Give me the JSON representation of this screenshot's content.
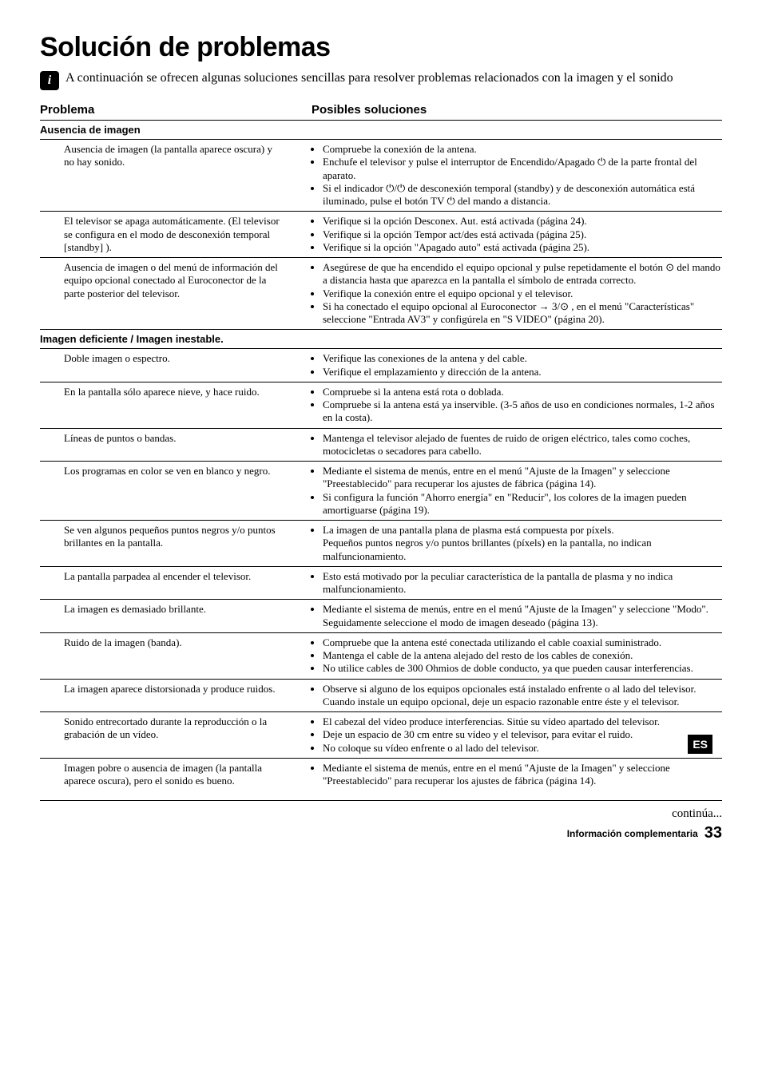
{
  "title": "Solución de problemas",
  "intro": "A continuación se ofrecen algunas soluciones sencillas para resolver problemas relacionados con la imagen y el sonido",
  "header": {
    "problema": "Problema",
    "soluciones": "Posibles soluciones"
  },
  "sections": [
    {
      "head": "Ausencia de imagen",
      "rows": [
        {
          "problem": "Ausencia de imagen (la pantalla aparece oscura) y no hay sonido.",
          "sol": [
            "Compruebe la conexión de la antena.",
            "Enchufe el televisor y pulse el interruptor de Encendido/Apagado ⏻ de la parte frontal del aparato.",
            "Si el indicador ⏻/⏻ de desconexión temporal (standby) y de desconexión automática está iluminado, pulse el botón TV ⏻ del mando a distancia."
          ]
        },
        {
          "problem": "El televisor se apaga automáticamente. (El televisor se configura en el modo de desconexión temporal [standby] ).",
          "sol": [
            "Verifique si la opción Desconex. Aut. está activada (página 24).",
            "Verifique si la opción Tempor act/des está activada (página 25).",
            "Verifique si la opción \"Apagado auto\" está activada (página 25)."
          ]
        },
        {
          "problem": "Ausencia de imagen o del menú de información del equipo opcional conectado al Euroconector de la parte posterior del televisor.",
          "sol": [
            "Asegúrese de que ha encendido el equipo opcional y pulse repetidamente el botón ⊙ del mando a distancia hasta que aparezca en la pantalla el símbolo de entrada correcto.",
            "Verifique la conexión entre el equipo opcional y el televisor.",
            "Si ha conectado el equipo opcional al Euroconector → 3/⊙ , en el menú \"Características\" seleccione \"Entrada AV3\" y configúrela en \"S VIDEO\"  (página 20)."
          ]
        }
      ]
    },
    {
      "head": "Imagen deficiente / Imagen inestable.",
      "rows": [
        {
          "problem": "Doble imagen o espectro.",
          "sol": [
            "Verifique las conexiones de la antena y del cable.",
            "Verifique el emplazamiento y dirección de la antena."
          ]
        },
        {
          "problem": "En la pantalla sólo aparece nieve, y hace ruido.",
          "sol": [
            "Compruebe si la antena está rota o doblada.",
            "Compruebe si la antena está ya inservible. (3-5 años de uso en condiciones normales, 1-2 años en la costa)."
          ]
        },
        {
          "problem": "Líneas de puntos o bandas.",
          "sol": [
            "Mantenga el televisor alejado de fuentes de ruido de origen eléctrico, tales como coches, motocicletas o secadores para cabello."
          ]
        },
        {
          "problem": "Los programas en color se ven en blanco y negro.",
          "sol": [
            "Mediante el sistema de menús, entre en el menú \"Ajuste de la Imagen\" y seleccione \"Preestablecido\" para recuperar los ajustes de fábrica (página 14).",
            "Si configura la función \"Ahorro energía\" en \"Reducir\", los colores de la imagen pueden amortiguarse (página 19)."
          ]
        },
        {
          "problem": "Se ven algunos pequeños puntos negros y/o puntos brillantes en la pantalla.",
          "sol_plain": "La imagen de una pantalla plana de plasma está compuesta por píxels.\nPequeños puntos negros y/o puntos brillantes (píxels) en la pantalla, no indican malfuncionamiento."
        },
        {
          "problem": "La pantalla parpadea al encender el televisor.",
          "sol": [
            "Esto está motivado por la peculiar característica de la pantalla de plasma y no indica malfuncionamiento."
          ]
        },
        {
          "problem": "La imagen es demasiado brillante.",
          "sol": [
            "Mediante el sistema de menús, entre en el menú \"Ajuste de la Imagen\" y seleccione \"Modo\". Seguidamente seleccione el modo de imagen deseado (página 13)."
          ]
        },
        {
          "problem": "Ruido de la imagen (banda).",
          "sol": [
            "Compruebe que la antena esté conectada utilizando el cable coaxial suministrado.",
            "Mantenga el cable de la antena alejado del resto de los cables de conexión.",
            "No utilice cables de 300 Ohmios de doble conducto, ya que pueden causar interferencias."
          ]
        },
        {
          "problem": "La imagen aparece distorsionada y produce ruidos.",
          "sol_plain_bulleted": "Observe si alguno de los equipos opcionales está instalado enfrente o al lado del televisor.\nCuando instale un equipo opcional, deje un espacio razonable entre éste y el televisor."
        },
        {
          "problem": "Sonido entrecortado durante la reproducción o la grabación de un vídeo.",
          "sol": [
            "El cabezal del vídeo produce interferencias. Sitúe su vídeo apartado del televisor.",
            "Deje un espacio de 30 cm entre su vídeo y el televisor, para evitar el ruido.",
            "No coloque su vídeo enfrente o al lado del televisor."
          ],
          "es_badge": true
        },
        {
          "problem": "Imagen pobre o ausencia de imagen (la pantalla aparece oscura), pero el sonido es bueno.",
          "sol": [
            "Mediante el sistema de menús, entre en el menú \"Ajuste de la Imagen\" y seleccione \"Preestablecido\" para recuperar los ajustes de fábrica (página 14)."
          ]
        }
      ]
    }
  ],
  "footer": {
    "continua": "continúa...",
    "label": "Información complementaria",
    "page": "33",
    "es": "ES"
  }
}
